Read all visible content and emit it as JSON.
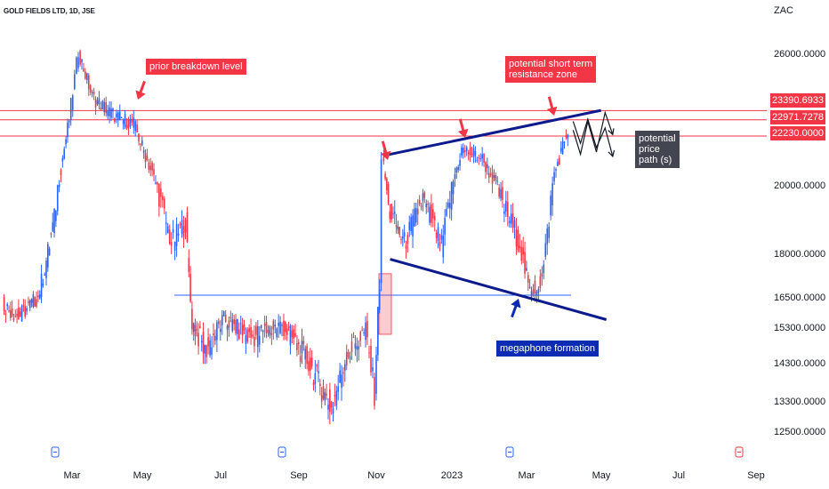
{
  "header": {
    "title": "GOLD FIELDS LTD, 1D, JSE",
    "currency": "ZAC"
  },
  "price_tags": [
    "23390.6933",
    "22971.7278",
    "22230.0000"
  ],
  "annotations": {
    "prior_breakdown": "prior breakdown level",
    "potential_short_term": "potential short term\nresistance zone",
    "megaphone": "megaphone formation",
    "price_path": "potential\nprice\npath (s)"
  },
  "colors": {
    "up": "#2962ff",
    "down": "#f23645",
    "trendline": "#0d1a8c",
    "horizontal": "#f23645",
    "support": "#2962ff"
  },
  "chart_data": {
    "type": "candlestick",
    "title": "GOLD FIELDS LTD, 1D, JSE",
    "y_ticks": [
      26000,
      20000,
      18000,
      16500,
      15300,
      14300,
      13300,
      12500
    ],
    "y_tick_labels": [
      "26000.0000",
      "20000.0000",
      "18000.0000",
      "16500.0000",
      "15300.0000",
      "14300.0000",
      "13300.0000",
      "12500.0000"
    ],
    "x_tick_labels": [
      "Mar",
      "May",
      "Jul",
      "Sep",
      "Nov",
      "2023",
      "Mar",
      "May",
      "Jul",
      "Sep"
    ],
    "horizontal_levels": [
      23390.6933,
      22971.7278,
      22230.0
    ],
    "support_level": 16560,
    "price_path": [
      {
        "date": "2022-01-01",
        "close": 16200
      },
      {
        "date": "2022-01-15",
        "close": 15700
      },
      {
        "date": "2022-02-01",
        "close": 16500
      },
      {
        "date": "2022-02-15",
        "close": 19000
      },
      {
        "date": "2022-02-28",
        "close": 23000
      },
      {
        "date": "2022-03-08",
        "close": 26100
      },
      {
        "date": "2022-03-20",
        "close": 24000
      },
      {
        "date": "2022-04-10",
        "close": 23100
      },
      {
        "date": "2022-04-25",
        "close": 22800
      },
      {
        "date": "2022-05-10",
        "close": 20500
      },
      {
        "date": "2022-05-25",
        "close": 18300
      },
      {
        "date": "2022-06-05",
        "close": 18900
      },
      {
        "date": "2022-06-10",
        "close": 15500
      },
      {
        "date": "2022-06-20",
        "close": 14600
      },
      {
        "date": "2022-07-05",
        "close": 15600
      },
      {
        "date": "2022-07-25",
        "close": 15000
      },
      {
        "date": "2022-08-20",
        "close": 15400
      },
      {
        "date": "2022-09-10",
        "close": 14300
      },
      {
        "date": "2022-09-28",
        "close": 13100
      },
      {
        "date": "2022-10-10",
        "close": 14500
      },
      {
        "date": "2022-10-25",
        "close": 15200
      },
      {
        "date": "2022-11-01",
        "close": 13500
      },
      {
        "date": "2022-11-05",
        "close": 17000
      },
      {
        "date": "2022-11-07",
        "close": 21300
      },
      {
        "date": "2022-11-12",
        "close": 19300
      },
      {
        "date": "2022-11-25",
        "close": 18300
      },
      {
        "date": "2022-12-10",
        "close": 19600
      },
      {
        "date": "2022-12-25",
        "close": 18200
      },
      {
        "date": "2023-01-10",
        "close": 21600
      },
      {
        "date": "2023-01-25",
        "close": 21300
      },
      {
        "date": "2023-02-10",
        "close": 19600
      },
      {
        "date": "2023-02-25",
        "close": 18300
      },
      {
        "date": "2023-03-05",
        "close": 16600
      },
      {
        "date": "2023-03-15",
        "close": 17100
      },
      {
        "date": "2023-03-25",
        "close": 20500
      },
      {
        "date": "2023-04-05",
        "close": 22500
      }
    ],
    "megaphone_upper": [
      {
        "date": "2022-11-05",
        "value": 21300
      },
      {
        "date": "2023-04-25",
        "value": 23400
      }
    ],
    "megaphone_lower": [
      {
        "date": "2022-11-05",
        "value": 17800
      },
      {
        "date": "2023-05-05",
        "value": 15600
      }
    ],
    "projected_paths": [
      [
        {
          "date": "2023-04-08",
          "value": 22900
        },
        {
          "date": "2023-04-14",
          "value": 21900
        },
        {
          "date": "2023-04-20",
          "value": 23000
        },
        {
          "date": "2023-04-27",
          "value": 21700
        },
        {
          "date": "2023-05-04",
          "value": 22600
        },
        {
          "date": "2023-05-10",
          "value": 21300
        }
      ],
      [
        {
          "date": "2023-04-08",
          "value": 22500
        },
        {
          "date": "2023-04-14",
          "value": 21400
        },
        {
          "date": "2023-04-20",
          "value": 22900
        },
        {
          "date": "2023-04-27",
          "value": 21500
        },
        {
          "date": "2023-05-04",
          "value": 23300
        },
        {
          "date": "2023-05-10",
          "value": 22300
        }
      ]
    ]
  }
}
